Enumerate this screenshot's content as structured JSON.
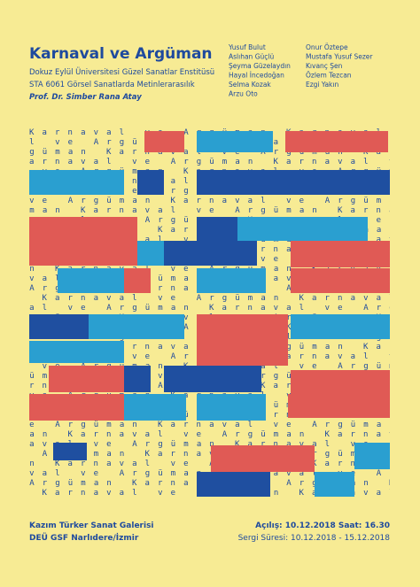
{
  "header": {
    "title": "Karnaval ve Argüman",
    "institution": "Dokuz Eylül Üniversitesi Güzel Sanatlar Enstitüsü",
    "course": "STA 6061 Görsel Sanatlarda Metinlerarasılık",
    "professor": "Prof. Dr. Simber Rana Atay"
  },
  "artists": {
    "column1": [
      "Yusuf Bulut",
      "Aslıhan Güçlü",
      "Şeyma Güzelaydın",
      "Hayal İncedoğan",
      "Selma Kozak",
      "Arzu Oto"
    ],
    "column2": [
      "Onur Öztepe",
      "Mustafa Yusuf Sezer",
      "Kıvanç Şen",
      "Özlem Tezcan",
      "Ezgi Yakın"
    ]
  },
  "footer": {
    "venue": "Kazım Türker Sanat Galerisi",
    "address": "DEÜ GSF Narlıdere/İzmir",
    "opening": "Açılış: 10.12.2018 Saat: 16.30",
    "duration": "Sergi Süresi: 10.12.2018 - 15.12.2018"
  }
}
